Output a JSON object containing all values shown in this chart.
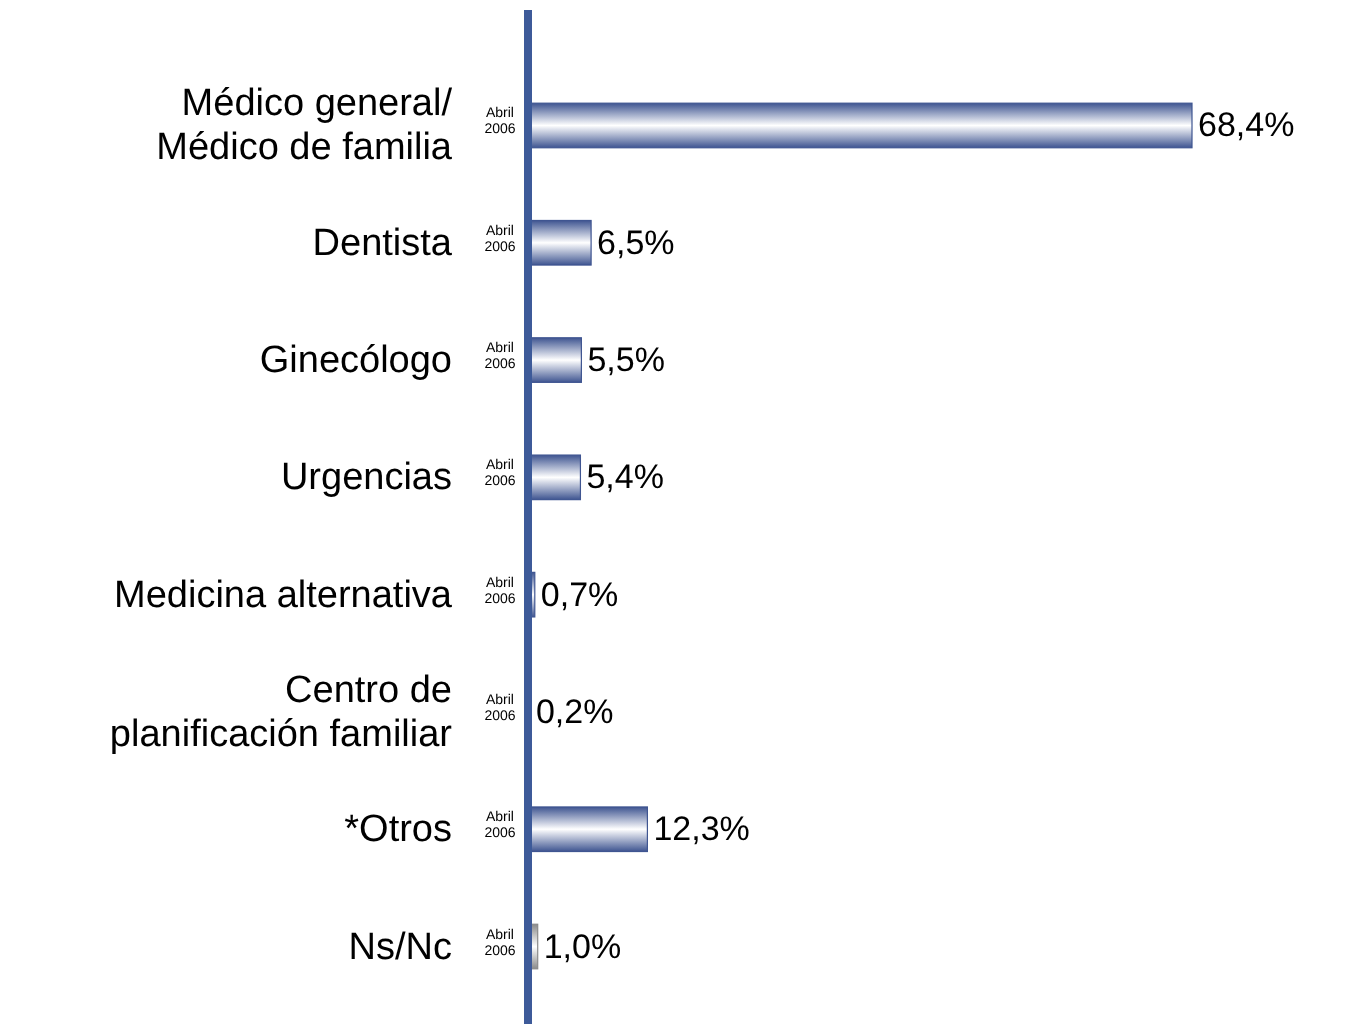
{
  "chart_data": {
    "type": "bar",
    "orientation": "horizontal",
    "categories": [
      "Médico general/\nMédico de familia",
      "Dentista",
      "Ginecólogo",
      "Urgencias",
      "Medicina alternativa",
      "Centro de\nplanificación familiar",
      "*Otros",
      "Ns/Nc"
    ],
    "series": [
      {
        "name": "Abril\n2006",
        "colors": [
          "#3f5591",
          "#3f5591",
          "#3f5591",
          "#3f5591",
          "#3f5591",
          "#3f5591",
          "#3f5591",
          "#8a8a8a"
        ],
        "values": [
          68.4,
          6.5,
          5.5,
          5.4,
          0.7,
          0.2,
          12.3,
          1.0
        ],
        "value_labels": [
          "68,4%",
          "6,5%",
          "5,5%",
          "5,4%",
          "0,7%",
          "0,2%",
          "12,3%",
          "1,0%"
        ]
      }
    ]
  }
}
